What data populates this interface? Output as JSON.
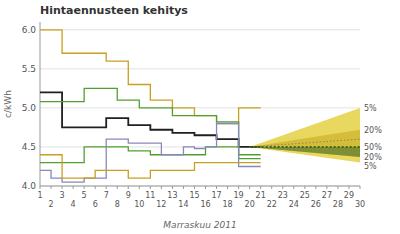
{
  "chart_data": {
    "type": "line",
    "line_style": "step",
    "title": "Hintaennusteen kehitys",
    "x_label": "Marraskuu 2011",
    "y_label": "c/kWh",
    "grid": true,
    "xlim": [
      1,
      30
    ],
    "xticks": [
      1,
      2,
      3,
      4,
      5,
      6,
      7,
      8,
      9,
      10,
      11,
      12,
      13,
      14,
      15,
      16,
      17,
      18,
      19,
      20,
      21,
      22,
      23,
      24,
      25,
      26,
      27,
      28,
      29,
      30
    ],
    "ylim": [
      4.0,
      6.1
    ],
    "yticks": [
      {
        "value": 4.0,
        "label": "4.0"
      },
      4.5,
      {
        "value": 5.0,
        "label": "5.0"
      },
      5.5,
      {
        "value": 6.0,
        "label": "6.0"
      }
    ],
    "x": [
      1,
      2,
      3,
      4,
      5,
      6,
      7,
      8,
      9,
      10,
      11,
      12,
      13,
      14,
      15,
      16,
      17,
      18,
      19,
      20,
      21
    ],
    "series": [
      {
        "color": "#c8a020",
        "values": [
          6.0,
          6.0,
          5.7,
          5.7,
          5.7,
          5.7,
          5.6,
          5.6,
          5.3,
          5.3,
          5.1,
          5.1,
          5.0,
          5.0,
          4.9,
          4.9,
          4.8,
          4.8,
          5.0,
          5.0,
          5.0
        ]
      },
      {
        "color": "#202020",
        "values": [
          5.2,
          5.2,
          4.75,
          4.75,
          4.75,
          4.75,
          4.87,
          4.87,
          4.78,
          4.78,
          4.72,
          4.72,
          4.68,
          4.68,
          4.65,
          4.65,
          4.6,
          4.6,
          4.5,
          4.5,
          4.5
        ]
      },
      {
        "color": "#50a030",
        "values": [
          5.08,
          5.08,
          5.08,
          5.08,
          5.25,
          5.25,
          5.25,
          5.1,
          5.1,
          5.0,
          5.0,
          5.0,
          4.9,
          4.9,
          4.9,
          4.9,
          4.82,
          4.82,
          4.4,
          4.4,
          4.4
        ]
      },
      {
        "color": "#50a030",
        "values": [
          4.3,
          4.3,
          4.3,
          4.3,
          4.5,
          4.5,
          4.5,
          4.5,
          4.45,
          4.45,
          4.4,
          4.4,
          4.4,
          4.4,
          4.4,
          4.5,
          4.5,
          4.5,
          4.35,
          4.35,
          4.35
        ]
      },
      {
        "color": "#8888bb",
        "values": [
          4.2,
          4.1,
          4.05,
          4.05,
          4.1,
          4.1,
          4.6,
          4.6,
          4.55,
          4.55,
          4.55,
          4.4,
          4.4,
          4.5,
          4.48,
          4.5,
          4.8,
          4.8,
          4.25,
          4.25,
          4.25
        ]
      },
      {
        "color": "#c8a020",
        "values": [
          4.4,
          4.4,
          4.1,
          4.1,
          4.1,
          4.2,
          4.2,
          4.2,
          4.1,
          4.1,
          4.2,
          4.2,
          4.2,
          4.2,
          4.3,
          4.3,
          4.3,
          4.3,
          4.3,
          4.3,
          4.3
        ]
      }
    ],
    "fan": {
      "x": [
        20,
        30
      ],
      "edges": [
        {
          "label": "5%",
          "values": [
            4.5,
            5.0
          ]
        },
        {
          "label": "20%",
          "values": [
            4.5,
            4.72
          ]
        },
        {
          "label": "50%",
          "values": [
            4.5,
            4.5
          ]
        },
        {
          "label": "20%",
          "values": [
            4.5,
            4.37
          ]
        },
        {
          "label": "5%",
          "values": [
            4.5,
            4.3
          ]
        }
      ],
      "dotted_lines": [
        {
          "values": [
            4.5,
            4.6
          ]
        },
        {
          "values": [
            4.5,
            4.43
          ]
        }
      ]
    }
  }
}
